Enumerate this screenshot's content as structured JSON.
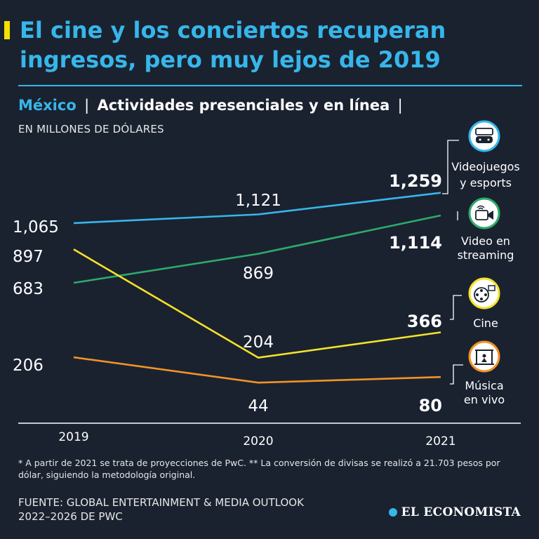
{
  "header": {
    "title": "El cine y los conciertos recuperan ingresos, pero muy lejos de 2019",
    "country": "México",
    "separator": "|",
    "subtitle": "Actividades presenciales y en línea",
    "units": "EN MILLONES DE DÓLARES"
  },
  "colors": {
    "background": "#1a2230",
    "accent": "#37b6ea",
    "marker": "#f5e000"
  },
  "chart_data": {
    "type": "line",
    "title": "Actividades presenciales y en línea",
    "xlabel": "",
    "ylabel": "EN MILLONES DE DÓLARES",
    "categories": [
      "2019",
      "2020",
      "2021"
    ],
    "grid": false,
    "series": [
      {
        "name": "Videojuegos y esports",
        "icon": "game-console-icon",
        "color": "#37b6ea",
        "values": [
          1065,
          1121,
          1259
        ],
        "labels": [
          "1,065",
          "1,121",
          "1,259"
        ]
      },
      {
        "name": "Video en streaming",
        "icon": "video-camera-icon",
        "color": "#2eaa6a",
        "values": [
          683,
          869,
          1114
        ],
        "labels": [
          "683",
          "869",
          "1,114"
        ]
      },
      {
        "name": "Cine",
        "icon": "film-reel-icon",
        "color": "#f5e22a",
        "values": [
          897,
          204,
          366
        ],
        "labels": [
          "897",
          "204",
          "366"
        ]
      },
      {
        "name": "Música en vivo",
        "icon": "concert-stage-icon",
        "color": "#f29325",
        "values": [
          206,
          44,
          80
        ],
        "labels": [
          "206",
          "44",
          "80"
        ]
      }
    ]
  },
  "legend": {
    "videojuegos_line1": "Videojuegos",
    "videojuegos_line2": "y esports",
    "streaming_line1": "Video en",
    "streaming_line2": "streaming",
    "cine": "Cine",
    "musica_line1": "Música",
    "musica_line2": "en vivo"
  },
  "footnote": "* A partir de 2021 se trata de proyecciones de PwC. ** La conversión de divisas se realizó a 21.703 pesos por dólar, siguiendo la metodología original.",
  "source": "FUENTE: GLOBAL ENTERTAINMENT & MEDIA OUTLOOK 2022–2026 DE PWC",
  "brand": "EL ECONOMISTA"
}
